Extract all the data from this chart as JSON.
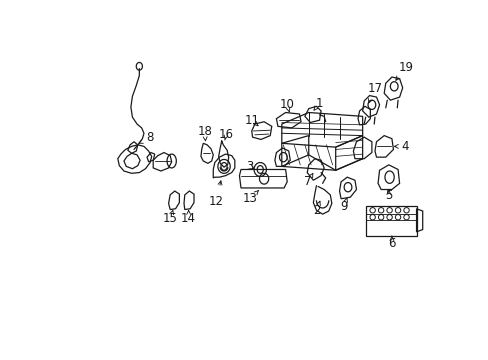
{
  "background_color": "#ffffff",
  "line_color": "#1a1a1a",
  "label_color": "#1a1a1a",
  "fig_width": 4.89,
  "fig_height": 3.6,
  "dpi": 100,
  "label_fontsize": 8.5,
  "lw": 0.9
}
